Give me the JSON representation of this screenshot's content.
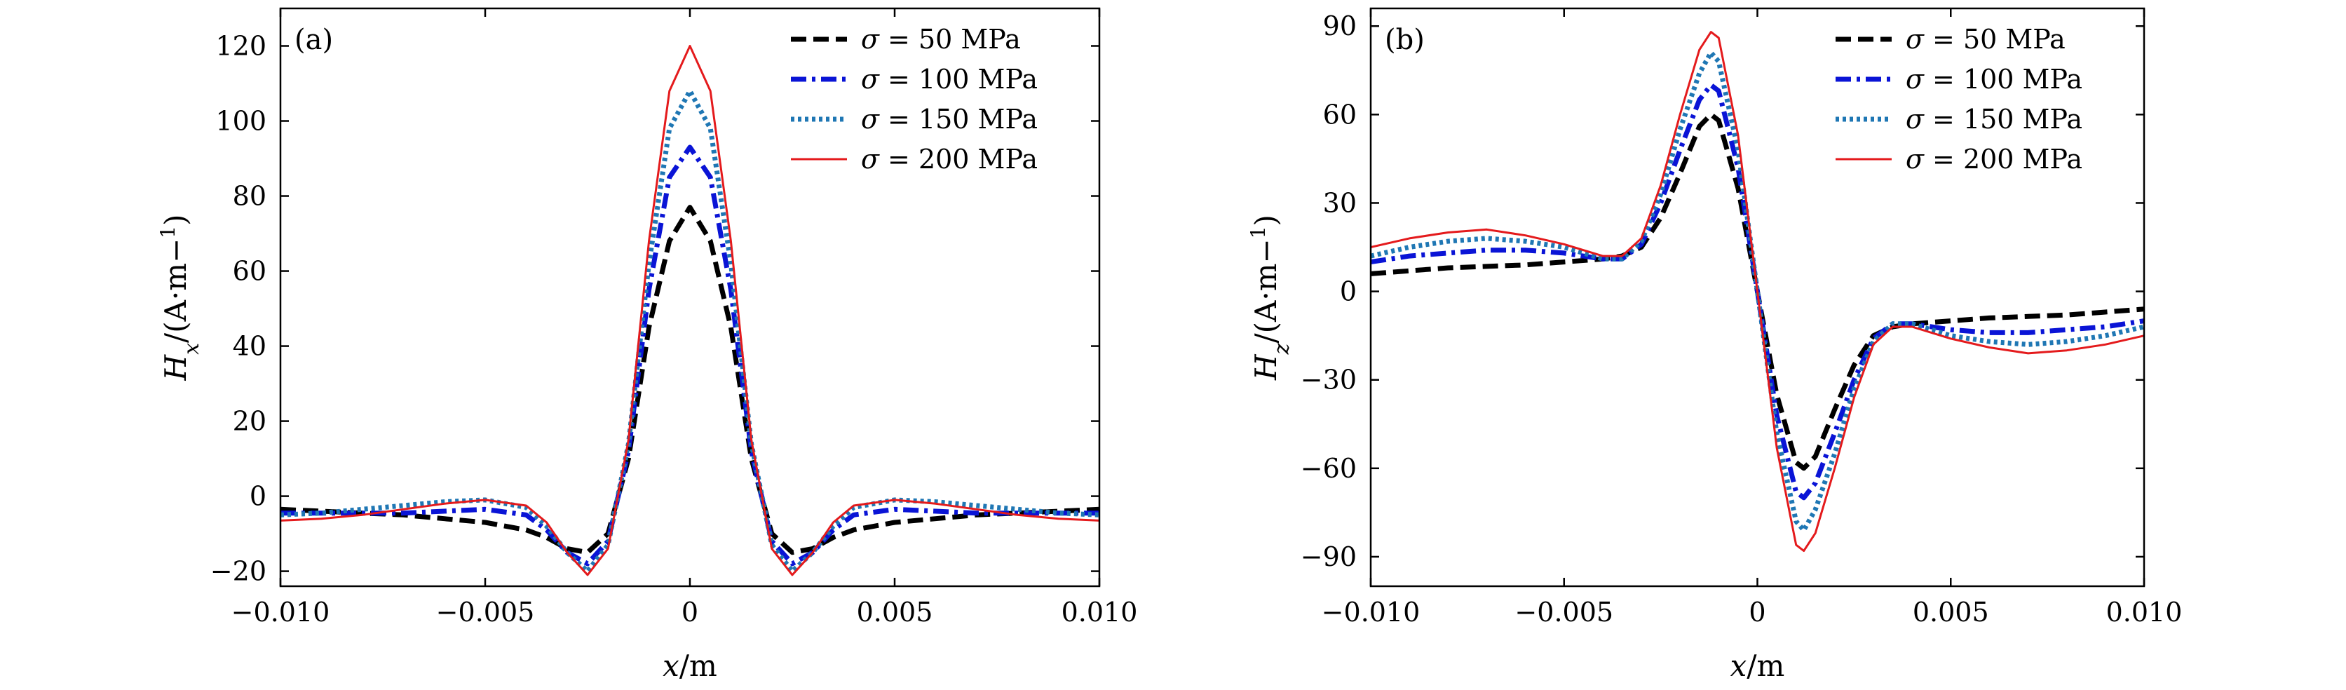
{
  "chart_data": [
    {
      "type": "line",
      "panel_label": "(a)",
      "xlabel": "x/m",
      "ylabel": "Hx/(A·m−1)",
      "xlim": [
        -0.01,
        0.01
      ],
      "ylim": [
        -24,
        130
      ],
      "xticks": [
        -0.01,
        -0.005,
        0,
        0.005,
        0.01
      ],
      "xtick_labels": [
        "−0.010",
        "−0.005",
        "0",
        "0.005",
        "0.010"
      ],
      "yticks": [
        -20,
        0,
        20,
        40,
        60,
        80,
        100,
        120
      ],
      "ytick_labels": [
        "−20",
        "0",
        "20",
        "40",
        "60",
        "80",
        "100",
        "120"
      ],
      "legend_position": "top-right",
      "grid": false,
      "x": [
        -0.01,
        -0.009,
        -0.008,
        -0.007,
        -0.006,
        -0.005,
        -0.004,
        -0.0035,
        -0.003,
        -0.0025,
        -0.002,
        -0.0015,
        -0.001,
        -0.0005,
        0,
        0.0005,
        0.001,
        0.0015,
        0.002,
        0.0025,
        0.003,
        0.0035,
        0.004,
        0.005,
        0.006,
        0.007,
        0.008,
        0.009,
        0.01
      ],
      "series": [
        {
          "name": "σ = 50 MPa",
          "color": "#000000",
          "dash": "dash",
          "values": [
            -3.5,
            -4,
            -4.5,
            -5,
            -6,
            -7,
            -9,
            -11,
            -14,
            -15,
            -10,
            10,
            45,
            68,
            77,
            68,
            45,
            10,
            -10,
            -15,
            -14,
            -11,
            -9,
            -7,
            -6,
            -5,
            -4.5,
            -4,
            -3.5
          ]
        },
        {
          "name": "σ = 100 MPa",
          "color": "#0a14d6",
          "dash": "dashdot",
          "values": [
            -4.5,
            -4.5,
            -4.5,
            -4.5,
            -4,
            -3.5,
            -5,
            -9,
            -15,
            -18,
            -12,
            12,
            55,
            85,
            93,
            85,
            55,
            12,
            -12,
            -18,
            -15,
            -9,
            -5,
            -3.5,
            -4,
            -4.5,
            -4.5,
            -4.5,
            -4.5
          ]
        },
        {
          "name": "σ = 150 MPa",
          "color": "#1f77b4",
          "dash": "dot",
          "values": [
            -5,
            -4.5,
            -3.5,
            -2.5,
            -1.5,
            -1,
            -3,
            -8,
            -15,
            -20,
            -13,
            14,
            62,
            98,
            108,
            98,
            62,
            14,
            -13,
            -20,
            -15,
            -8,
            -3,
            -1,
            -1.5,
            -2.5,
            -3.5,
            -4.5,
            -5
          ]
        },
        {
          "name": "σ = 200 MPa",
          "color": "#e41a1c",
          "dash": "solid",
          "values": [
            -6.5,
            -6,
            -5,
            -3.5,
            -2,
            -1,
            -2.5,
            -7,
            -15,
            -21,
            -14,
            15,
            68,
            108,
            120,
            108,
            68,
            15,
            -14,
            -21,
            -15,
            -7,
            -2.5,
            -1,
            -2,
            -3.5,
            -5,
            -6,
            -6.5
          ]
        }
      ]
    },
    {
      "type": "line",
      "panel_label": "(b)",
      "xlabel": "x/m",
      "ylabel": "Hz/(A·m−1)",
      "xlim": [
        -0.01,
        0.01
      ],
      "ylim": [
        -100,
        96
      ],
      "xticks": [
        -0.01,
        -0.005,
        0,
        0.005,
        0.01
      ],
      "xtick_labels": [
        "−0.010",
        "−0.005",
        "0",
        "0.005",
        "0.010"
      ],
      "yticks": [
        -90,
        -60,
        -30,
        0,
        30,
        60,
        90
      ],
      "ytick_labels": [
        "−90",
        "−60",
        "−30",
        "0",
        "30",
        "60",
        "90"
      ],
      "legend_position": "top-right",
      "grid": false,
      "x": [
        -0.01,
        -0.009,
        -0.008,
        -0.007,
        -0.006,
        -0.005,
        -0.004,
        -0.0035,
        -0.003,
        -0.0025,
        -0.002,
        -0.0015,
        -0.0012,
        -0.001,
        -0.0005,
        0,
        0.0005,
        0.001,
        0.0012,
        0.0015,
        0.002,
        0.0025,
        0.003,
        0.0035,
        0.004,
        0.005,
        0.006,
        0.007,
        0.008,
        0.009,
        0.01
      ],
      "series": [
        {
          "name": "σ = 50 MPa",
          "color": "#000000",
          "dash": "dash",
          "values": [
            6,
            7,
            8,
            8.5,
            9,
            10,
            11,
            12,
            15,
            25,
            40,
            56,
            60,
            58,
            35,
            0,
            -35,
            -58,
            -60,
            -56,
            -40,
            -25,
            -15,
            -12,
            -11,
            -10,
            -9,
            -8.5,
            -8,
            -7,
            -6
          ]
        },
        {
          "name": "σ = 100 MPa",
          "color": "#0a14d6",
          "dash": "dashdot",
          "values": [
            10,
            12,
            13,
            14,
            14,
            13,
            11,
            11,
            16,
            30,
            48,
            65,
            70,
            68,
            42,
            0,
            -42,
            -68,
            -70,
            -65,
            -48,
            -30,
            -16,
            -11,
            -11,
            -13,
            -14,
            -14,
            -13,
            -12,
            -10
          ]
        },
        {
          "name": "σ = 150 MPa",
          "color": "#1f77b4",
          "dash": "dot",
          "values": [
            12,
            15,
            17,
            18,
            17,
            15,
            11,
            11,
            17,
            33,
            55,
            74,
            81,
            78,
            48,
            0,
            -48,
            -78,
            -81,
            -74,
            -55,
            -33,
            -17,
            -11,
            -11,
            -15,
            -17,
            -18,
            -17,
            -15,
            -12
          ]
        },
        {
          "name": "σ = 200 MPa",
          "color": "#e41a1c",
          "dash": "solid",
          "values": [
            15,
            18,
            20,
            21,
            19,
            16,
            12,
            12,
            18,
            36,
            60,
            82,
            88,
            86,
            53,
            0,
            -53,
            -86,
            -88,
            -82,
            -60,
            -36,
            -18,
            -12,
            -12,
            -16,
            -19,
            -21,
            -20,
            -18,
            -15
          ]
        }
      ]
    }
  ]
}
